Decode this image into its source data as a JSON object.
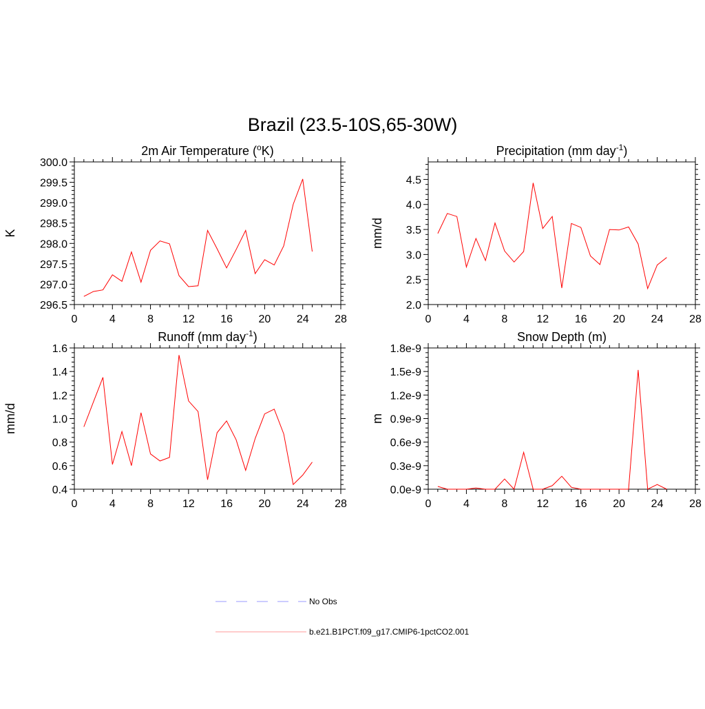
{
  "title": "Brazil (23.5-10S,65-30W)",
  "chart_data": [
    {
      "type": "line",
      "title": "2m Air Temperature (",
      "title_sup": "o",
      "title_after": "K)",
      "ylabel": "K",
      "xlim": [
        0,
        28
      ],
      "ylim": [
        296.5,
        300.0
      ],
      "xticks": [
        0,
        4,
        8,
        12,
        16,
        20,
        24,
        28
      ],
      "yticks": [
        296.5,
        297.0,
        297.5,
        298.0,
        298.5,
        299.0,
        299.5,
        300.0
      ],
      "ytick_labels": [
        "296.5",
        "297.0",
        "297.5",
        "298.0",
        "298.5",
        "299.0",
        "299.5",
        "300.0"
      ],
      "x": [
        1,
        2,
        3,
        4,
        5,
        6,
        7,
        8,
        9,
        10,
        11,
        12,
        13,
        14,
        15,
        16,
        17,
        18,
        19,
        20,
        21,
        22,
        23,
        24,
        25
      ],
      "values": [
        296.7,
        296.82,
        296.86,
        297.23,
        297.07,
        297.79,
        297.05,
        297.83,
        298.06,
        297.99,
        297.21,
        296.94,
        296.96,
        298.32,
        297.87,
        297.4,
        297.85,
        298.32,
        297.26,
        297.6,
        297.47,
        297.94,
        298.96,
        299.58,
        297.8
      ]
    },
    {
      "type": "line",
      "title": "Precipitation (mm day",
      "title_sup": "-1",
      "title_after": ")",
      "ylabel": "mm/d",
      "xlim": [
        0,
        28
      ],
      "ylim": [
        2.0,
        4.85
      ],
      "xticks": [
        0,
        4,
        8,
        12,
        16,
        20,
        24,
        28
      ],
      "yticks": [
        2.0,
        2.5,
        3.0,
        3.5,
        4.0,
        4.5
      ],
      "ytick_labels": [
        "2.0",
        "2.5",
        "3.0",
        "3.5",
        "4.0",
        "4.5"
      ],
      "x": [
        1,
        2,
        3,
        4,
        5,
        6,
        7,
        8,
        9,
        10,
        11,
        12,
        13,
        14,
        15,
        16,
        17,
        18,
        19,
        20,
        21,
        22,
        23,
        24,
        25
      ],
      "values": [
        3.42,
        3.82,
        3.76,
        2.75,
        3.32,
        2.88,
        3.63,
        3.07,
        2.85,
        3.06,
        4.43,
        3.52,
        3.76,
        2.33,
        3.62,
        3.54,
        2.97,
        2.8,
        3.5,
        3.49,
        3.55,
        3.21,
        2.32,
        2.79,
        2.94
      ]
    },
    {
      "type": "line",
      "title": "Runoff (mm day",
      "title_sup": "-1",
      "title_after": ")",
      "ylabel": "mm/d",
      "xlim": [
        0,
        28
      ],
      "ylim": [
        0.4,
        1.6
      ],
      "xticks": [
        0,
        4,
        8,
        12,
        16,
        20,
        24,
        28
      ],
      "yticks": [
        0.4,
        0.6,
        0.8,
        1.0,
        1.2,
        1.4,
        1.6
      ],
      "ytick_labels": [
        "0.4",
        "0.6",
        "0.8",
        "1.0",
        "1.2",
        "1.4",
        "1.6"
      ],
      "x": [
        1,
        2,
        3,
        4,
        5,
        6,
        7,
        8,
        9,
        10,
        11,
        12,
        13,
        14,
        15,
        16,
        17,
        18,
        19,
        20,
        21,
        22,
        23,
        24,
        25
      ],
      "values": [
        0.93,
        1.14,
        1.35,
        0.61,
        0.89,
        0.6,
        1.05,
        0.7,
        0.64,
        0.67,
        1.54,
        1.15,
        1.06,
        0.48,
        0.88,
        0.98,
        0.82,
        0.56,
        0.83,
        1.04,
        1.08,
        0.87,
        0.44,
        0.52,
        0.63
      ]
    },
    {
      "type": "line",
      "title": "Snow Depth (m)",
      "title_sup": "",
      "title_after": "",
      "ylabel": "m",
      "xlim": [
        0,
        28
      ],
      "ylim": [
        0.0,
        1.8e-09
      ],
      "xticks": [
        0,
        4,
        8,
        12,
        16,
        20,
        24,
        28
      ],
      "yticks": [
        0.0,
        3e-10,
        6e-10,
        9e-10,
        1.2e-09,
        1.5e-09,
        1.8e-09
      ],
      "ytick_labels": [
        "0.0e-9",
        "0.3e-9",
        "0.6e-9",
        "0.9e-9",
        "1.2e-9",
        "1.5e-9",
        "1.8e-9"
      ],
      "x": [
        1,
        2,
        3,
        4,
        5,
        6,
        7,
        8,
        9,
        10,
        11,
        12,
        13,
        14,
        15,
        16,
        17,
        18,
        19,
        20,
        21,
        22,
        23,
        24,
        25
      ],
      "values": [
        3.5e-11,
        0,
        0,
        0,
        1.5e-11,
        0,
        0,
        1.3e-10,
        0,
        4.7e-10,
        0,
        0,
        4.5e-11,
        1.65e-10,
        2.5e-11,
        0,
        0,
        0,
        0,
        0,
        0,
        1.52e-09,
        0,
        6e-11,
        0
      ]
    }
  ],
  "legend": [
    {
      "label": "No Obs",
      "color": "#9999ff",
      "dash": "dashed"
    },
    {
      "label": "b.e21.B1PCT.f09_g17.CMIP6-1pctCO2.001",
      "color": "#ff9999",
      "dash": "solid"
    }
  ]
}
